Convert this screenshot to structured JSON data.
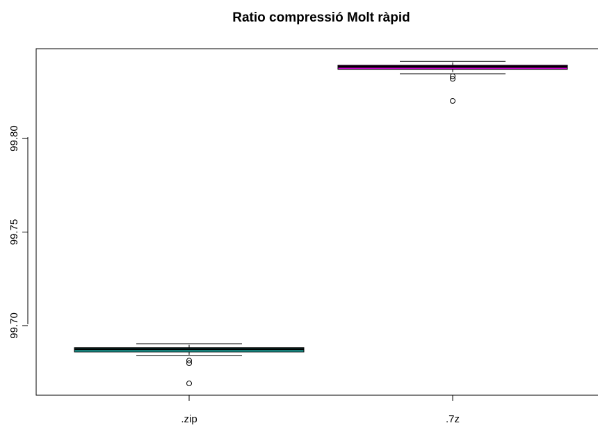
{
  "chart_data": {
    "type": "box",
    "title": "Ratio compressió Molt ràpid",
    "xlabel": "",
    "ylabel": "",
    "categories": [
      ".zip",
      ".7z"
    ],
    "y_ticks": [
      99.7,
      99.75,
      99.8
    ],
    "ylim": [
      99.6628,
      99.848
    ],
    "grid": false,
    "colors": {
      ".zip": "#20b2aa",
      ".7z": "#cc00cc"
    },
    "boxes": [
      {
        "category": ".zip",
        "whisker_low": 99.6841,
        "q1": 99.6859,
        "median": 99.6874,
        "q3": 99.6882,
        "whisker_high": 99.6903,
        "outliers": [
          99.6813,
          99.6799,
          99.6691
        ]
      },
      {
        "category": ".7z",
        "whisker_low": 99.8346,
        "q1": 99.837,
        "median": 99.8384,
        "q3": 99.8392,
        "whisker_high": 99.8412,
        "outliers": [
          99.8333,
          99.8319,
          99.8201
        ]
      }
    ]
  }
}
